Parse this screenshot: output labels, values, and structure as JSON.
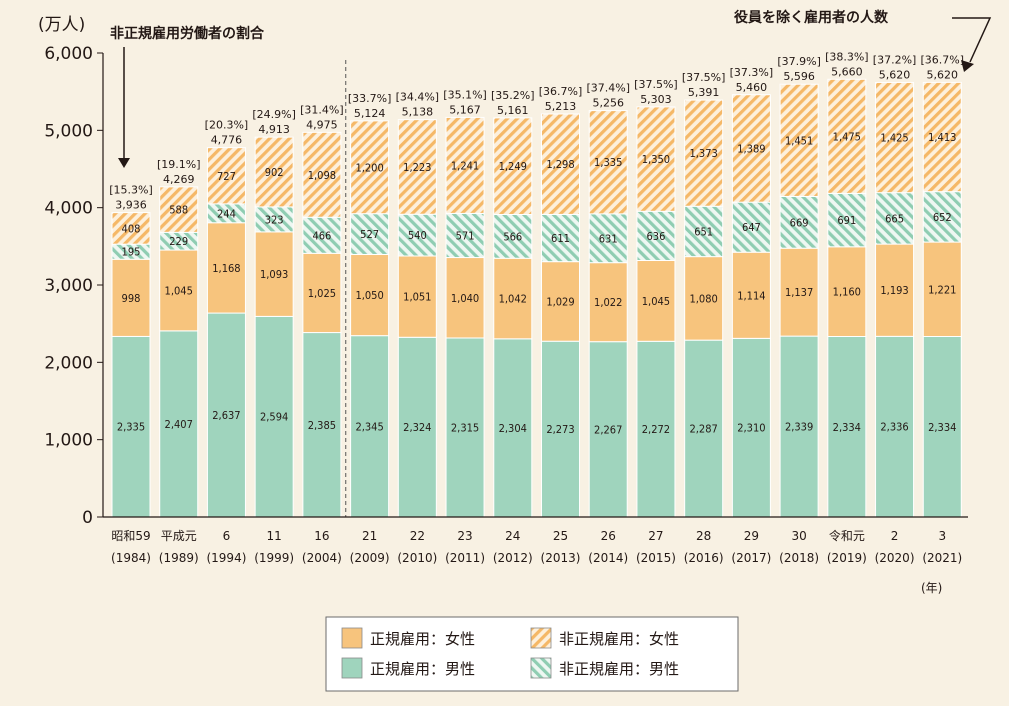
{
  "chart_data": {
    "type": "bar",
    "stacked": true,
    "y_unit_label": "(万人)",
    "ylim": [
      0,
      6000
    ],
    "yticks": [
      "0",
      "1,000",
      "2,000",
      "3,000",
      "4,000",
      "5,000",
      "6,000"
    ],
    "ytick_values": [
      0,
      1000,
      2000,
      3000,
      4000,
      5000,
      6000
    ],
    "x_unit_label": "(年)",
    "categories": [
      [
        "昭和59",
        "(1984)"
      ],
      [
        "平成元",
        "(1989)"
      ],
      [
        "6",
        "(1994)"
      ],
      [
        "11",
        "(1999)"
      ],
      [
        "16",
        "(2004)"
      ],
      [
        "21",
        "(2009)"
      ],
      [
        "22",
        "(2010)"
      ],
      [
        "23",
        "(2011)"
      ],
      [
        "24",
        "(2012)"
      ],
      [
        "25",
        "(2013)"
      ],
      [
        "26",
        "(2014)"
      ],
      [
        "27",
        "(2015)"
      ],
      [
        "28",
        "(2016)"
      ],
      [
        "29",
        "(2017)"
      ],
      [
        "30",
        "(2018)"
      ],
      [
        "令和元",
        "(2019)"
      ],
      [
        "2",
        "(2020)"
      ],
      [
        "3",
        "(2021)"
      ]
    ],
    "series": [
      {
        "name": "正規雇用：男性",
        "key": "reg_male",
        "color": "#9fd4bd",
        "pattern": "solid",
        "values": [
          2335,
          2407,
          2637,
          2594,
          2385,
          2345,
          2324,
          2315,
          2304,
          2273,
          2267,
          2272,
          2287,
          2310,
          2339,
          2334,
          2336,
          2334
        ],
        "labels": [
          "2,335",
          "2,407",
          "2,637",
          "2,594",
          "2,385",
          "2,345",
          "2,324",
          "2,315",
          "2,304",
          "2,273",
          "2,267",
          "2,272",
          "2,287",
          "2,310",
          "2,339",
          "2,334",
          "2,336",
          "2,334"
        ]
      },
      {
        "name": "正規雇用：女性",
        "key": "reg_female",
        "color": "#f7c47d",
        "pattern": "solid",
        "values": [
          998,
          1045,
          1168,
          1093,
          1025,
          1050,
          1051,
          1040,
          1042,
          1029,
          1022,
          1045,
          1080,
          1114,
          1137,
          1160,
          1193,
          1221
        ],
        "labels": [
          "998",
          "1,045",
          "1,168",
          "1,093",
          "1,025",
          "1,050",
          "1,051",
          "1,040",
          "1,042",
          "1,029",
          "1,022",
          "1,045",
          "1,080",
          "1,114",
          "1,137",
          "1,160",
          "1,193",
          "1,221"
        ]
      },
      {
        "name": "非正規雇用：男性",
        "key": "nonreg_male",
        "color": "#9fd4bd",
        "pattern": "hatch",
        "values": [
          195,
          229,
          244,
          323,
          466,
          527,
          540,
          571,
          566,
          611,
          631,
          636,
          651,
          647,
          669,
          691,
          665,
          652
        ],
        "labels": [
          "195",
          "229",
          "244",
          "323",
          "466",
          "527",
          "540",
          "571",
          "566",
          "611",
          "631",
          "636",
          "651",
          "647",
          "669",
          "691",
          "665",
          "652"
        ]
      },
      {
        "name": "非正規雇用：女性",
        "key": "nonreg_female",
        "color": "#f7c47d",
        "pattern": "hatch",
        "values": [
          408,
          588,
          727,
          902,
          1098,
          1200,
          1223,
          1241,
          1249,
          1298,
          1335,
          1350,
          1373,
          1389,
          1451,
          1475,
          1425,
          1413
        ],
        "labels": [
          "408",
          "588",
          "727",
          "902",
          "1,098",
          "1,200",
          "1,223",
          "1,241",
          "1,249",
          "1,298",
          "1,335",
          "1,350",
          "1,373",
          "1,389",
          "1,451",
          "1,475",
          "1,425",
          "1,413"
        ]
      }
    ],
    "totals": [
      3936,
      4269,
      4776,
      4913,
      4975,
      5124,
      5138,
      5167,
      5161,
      5213,
      5256,
      5303,
      5391,
      5460,
      5596,
      5660,
      5620,
      5620
    ],
    "total_labels": [
      "3,936",
      "4,269",
      "4,776",
      "4,913",
      "4,975",
      "5,124",
      "5,138",
      "5,167",
      "5,161",
      "5,213",
      "5,256",
      "5,303",
      "5,391",
      "5,460",
      "5,596",
      "5,660",
      "5,620",
      "5,620"
    ],
    "nonregular_ratio_labels": [
      "[15.3%]",
      "[19.1%]",
      "[20.3%]",
      "[24.9%]",
      "[31.4%]",
      "[33.7%]",
      "[34.4%]",
      "[35.1%]",
      "[35.2%]",
      "[36.7%]",
      "[37.4%]",
      "[37.5%]",
      "[37.5%]",
      "[37.3%]",
      "[37.9%]",
      "[38.3%]",
      "[37.2%]",
      "[36.7%]"
    ],
    "annotations": {
      "left": "非正規雇用労働者の割合",
      "right": "役員を除く雇用者の人数"
    },
    "legend": [
      {
        "label": "正規雇用：女性",
        "key": "reg_female"
      },
      {
        "label": "非正規雇用：女性",
        "key": "nonreg_female"
      },
      {
        "label": "正規雇用：男性",
        "key": "reg_male"
      },
      {
        "label": "非正規雇用：男性",
        "key": "nonreg_male"
      }
    ]
  }
}
